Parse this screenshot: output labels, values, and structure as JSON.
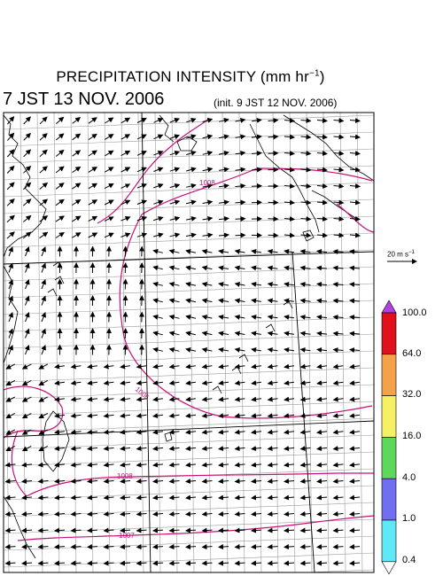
{
  "header": {
    "title_main": "PRECIPITATION INTENSITY (mm hr",
    "title_exp": "−1",
    "title_close": ")",
    "valid_time": "7 JST 13 NOV. 2006",
    "init_time": "(init. 9 JST 12 NOV. 2006)"
  },
  "wind_reference": {
    "label": "20 m s",
    "exp": "−1"
  },
  "colorbar": {
    "labels": [
      "100.0",
      "64.0",
      "32.0",
      "16.0",
      "4.0",
      "1.0",
      "0.4"
    ],
    "colors": [
      "#e0101c",
      "#f5a14a",
      "#f7f065",
      "#5ed85a",
      "#6f6ff0",
      "#5fe8f5"
    ],
    "over_color": "#b540e0",
    "under_color": "#ffffff"
  },
  "isobars": [
    {
      "label": "1008"
    },
    {
      "label": "1006"
    },
    {
      "label": "1008"
    },
    {
      "label": "1007"
    }
  ],
  "colors": {
    "isobar": "#c8107a",
    "grid": "#9a9a9a",
    "coast": "#000000",
    "arrow": "#000000"
  }
}
